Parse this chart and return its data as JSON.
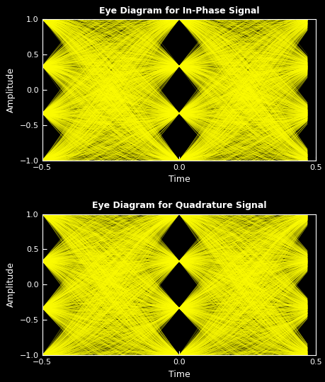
{
  "title1": "Eye Diagram for In-Phase Signal",
  "title2": "Eye Diagram for Quadrature Signal",
  "xlabel": "Time",
  "ylabel": "Amplitude",
  "line_color": "#ffff00",
  "bg_color": "#000000",
  "text_color": "#ffffff",
  "xlim": [
    -0.5,
    0.5
  ],
  "ylim": [
    -1.0,
    1.0
  ],
  "yticks": [
    -1,
    -0.5,
    0,
    0.5,
    1
  ],
  "xticks": [
    -0.5,
    0,
    0.5
  ],
  "sps": 16,
  "num_symbols": 2000,
  "alpha": 0.35,
  "span": 8,
  "seed_i": 42,
  "seed_q": 99,
  "linewidth": 0.3,
  "alpha_line": 0.5,
  "levels": [
    -1.0,
    -0.333,
    0.333,
    1.0
  ],
  "figwidth": 4.6,
  "figheight": 5.4,
  "dpi": 100
}
